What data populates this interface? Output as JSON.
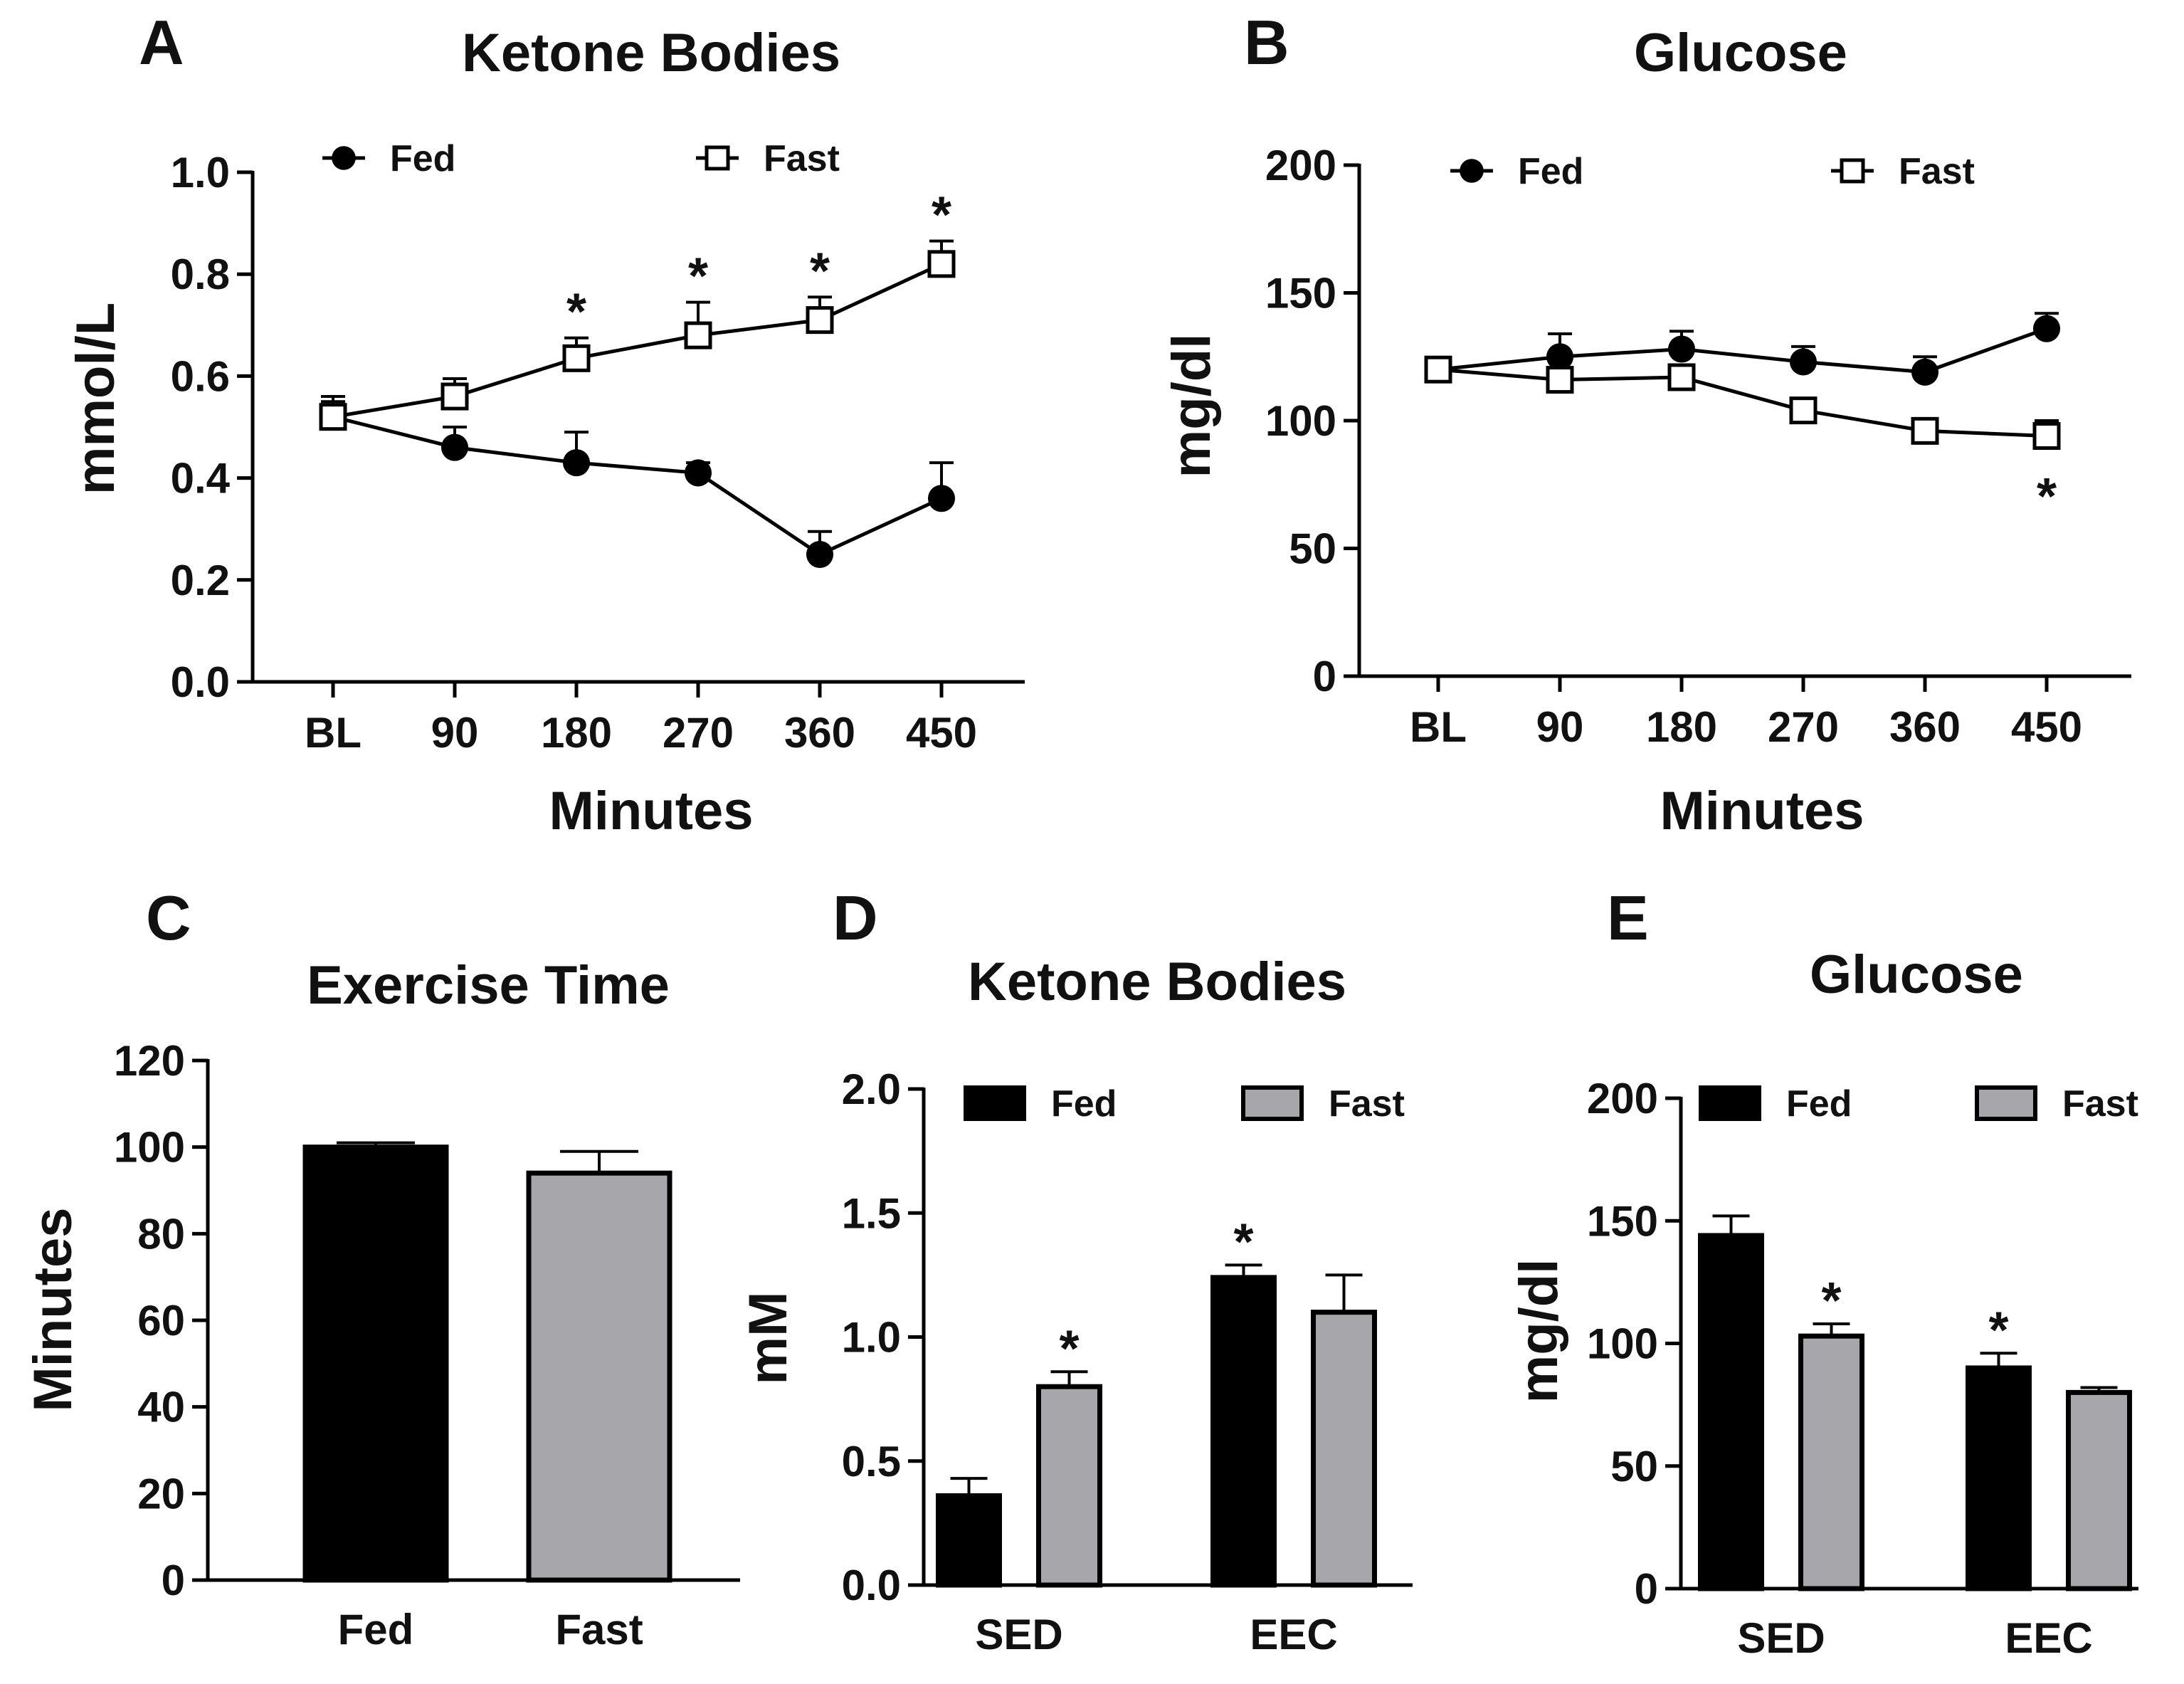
{
  "chart_data": [
    {
      "panel": "A",
      "type": "line",
      "title": "Ketone Bodies",
      "xlabel": "Minutes",
      "ylabel": "mmol/L",
      "categories": [
        "BL",
        "90",
        "180",
        "270",
        "360",
        "450"
      ],
      "yticks": [
        "0.0",
        "0.2",
        "0.4",
        "0.6",
        "0.8",
        "1.0"
      ],
      "ylim": [
        0,
        1.0
      ],
      "series": [
        {
          "name": "Fed",
          "marker": "filled-circle",
          "values": [
            0.52,
            0.46,
            0.43,
            0.41,
            0.25,
            0.36
          ],
          "errors": [
            0.04,
            0.04,
            0.06,
            0.02,
            0.045,
            0.07
          ]
        },
        {
          "name": "Fast",
          "marker": "open-square",
          "values": [
            0.52,
            0.56,
            0.635,
            0.68,
            0.71,
            0.82
          ],
          "errors": [
            0.03,
            0.035,
            0.04,
            0.065,
            0.045,
            0.045
          ]
        }
      ],
      "significance": [
        {
          "category": "180",
          "label": "*"
        },
        {
          "category": "270",
          "label": "*"
        },
        {
          "category": "360",
          "label": "*"
        },
        {
          "category": "450",
          "label": "*"
        }
      ]
    },
    {
      "panel": "B",
      "type": "line",
      "title": "Glucose",
      "xlabel": "Minutes",
      "ylabel": "mg/dl",
      "categories": [
        "BL",
        "90",
        "180",
        "270",
        "360",
        "450"
      ],
      "yticks": [
        "0",
        "50",
        "100",
        "150",
        "200"
      ],
      "ylim": [
        0,
        200
      ],
      "series": [
        {
          "name": "Fed",
          "marker": "filled-circle",
          "values": [
            120,
            125,
            128,
            123,
            119,
            136
          ],
          "errors": [
            3,
            9,
            7,
            6,
            6,
            6
          ]
        },
        {
          "name": "Fast",
          "marker": "open-square",
          "values": [
            120,
            116,
            117,
            104,
            96,
            94
          ],
          "errors": [
            3,
            7,
            4,
            4,
            3,
            6
          ]
        }
      ],
      "significance": [
        {
          "category": "450",
          "label": "*"
        }
      ]
    },
    {
      "panel": "C",
      "type": "bar",
      "title": "Exercise Time",
      "xlabel": "",
      "ylabel": "Minutes",
      "categories": [
        "Fed",
        "Fast"
      ],
      "yticks": [
        "0",
        "20",
        "40",
        "60",
        "80",
        "100",
        "120"
      ],
      "ylim": [
        0,
        120
      ],
      "values": [
        100,
        94
      ],
      "errors": [
        1,
        5
      ],
      "colors": [
        "#000000",
        "#a7a7ab"
      ]
    },
    {
      "panel": "D",
      "type": "bar",
      "title": "Ketone Bodies",
      "xlabel": "",
      "ylabel": "mM",
      "categories": [
        "SED",
        "EEC"
      ],
      "yticks": [
        "0.0",
        "0.5",
        "1.0",
        "1.5",
        "2.0"
      ],
      "ylim": [
        0,
        2.0
      ],
      "series": [
        {
          "name": "Fed",
          "color": "#000000",
          "values": [
            0.36,
            1.24
          ],
          "errors": [
            0.07,
            0.05
          ]
        },
        {
          "name": "Fast",
          "color": "#a7a7ab",
          "values": [
            0.8,
            1.1
          ],
          "errors": [
            0.06,
            0.15
          ]
        }
      ],
      "significance": [
        {
          "category": "SED",
          "series": "Fast",
          "label": "*"
        },
        {
          "category": "EEC",
          "series": "Fed",
          "label": "*"
        }
      ]
    },
    {
      "panel": "E",
      "type": "bar",
      "title": "Glucose",
      "xlabel": "",
      "ylabel": "mg/dl",
      "categories": [
        "SED",
        "EEC"
      ],
      "yticks": [
        "0",
        "50",
        "100",
        "150",
        "200"
      ],
      "ylim": [
        0,
        200
      ],
      "series": [
        {
          "name": "Fed",
          "color": "#000000",
          "values": [
            144,
            90
          ],
          "errors": [
            8,
            6
          ]
        },
        {
          "name": "Fast",
          "color": "#a7a7ab",
          "values": [
            103,
            80
          ],
          "errors": [
            5,
            2
          ]
        }
      ],
      "significance": [
        {
          "category": "SED",
          "series": "Fast",
          "label": "*"
        },
        {
          "category": "EEC",
          "series": "Fed",
          "label": "*"
        }
      ]
    }
  ]
}
